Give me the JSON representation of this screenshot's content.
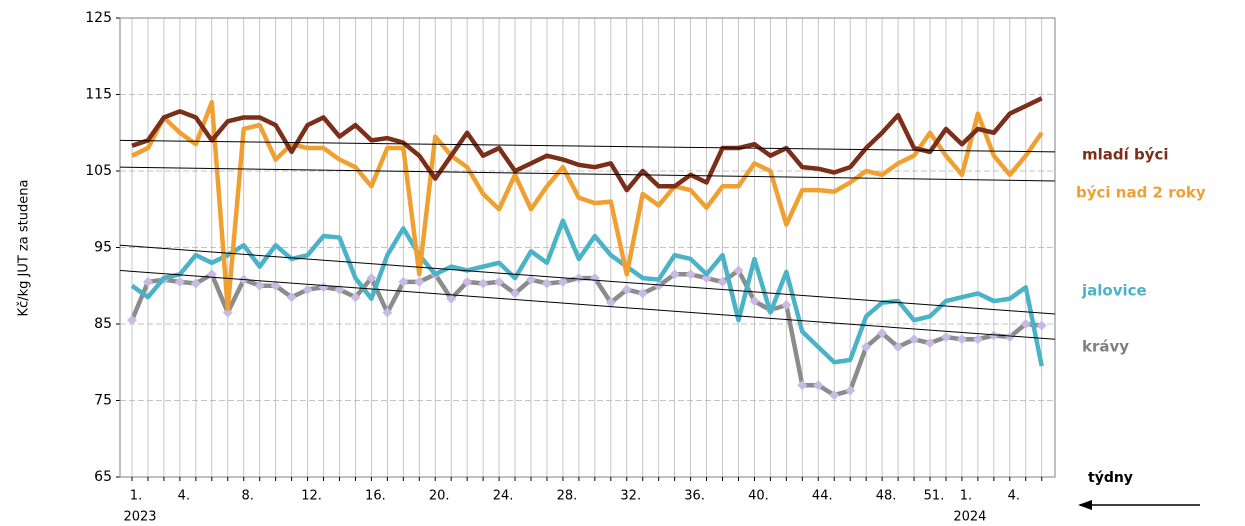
{
  "chart_data": {
    "type": "line",
    "y_label": "Kč/kg JUT za studena",
    "x_label": "týdny",
    "categories": [
      "1.",
      null,
      null,
      "4.",
      null,
      null,
      null,
      "8.",
      null,
      null,
      null,
      "12.",
      null,
      null,
      null,
      "16.",
      null,
      null,
      null,
      "20.",
      null,
      null,
      null,
      "24.",
      null,
      null,
      null,
      "28.",
      null,
      null,
      null,
      "32.",
      null,
      null,
      null,
      "36.",
      null,
      null,
      null,
      "40.",
      null,
      null,
      null,
      "44.",
      null,
      null,
      null,
      "48.",
      null,
      null,
      "51.",
      null,
      "1.",
      null,
      null,
      "4.",
      null,
      null
    ],
    "year_labels": [
      "2023",
      "2024"
    ],
    "ylim": [
      65,
      125
    ],
    "yticks": [
      65,
      75,
      85,
      95,
      105,
      115,
      125
    ],
    "grid": true,
    "series": [
      {
        "name": "mladí býci",
        "color": "#7b2e1a",
        "values": [
          108.3,
          109,
          112,
          112.8,
          112,
          109,
          111.5,
          112,
          112,
          111,
          107.5,
          111,
          112,
          109.5,
          111,
          109,
          109.3,
          108.7,
          107,
          104,
          107,
          110,
          107,
          108,
          105,
          106,
          107,
          106.5,
          105.8,
          105.5,
          106,
          102.5,
          105,
          103,
          103,
          104.5,
          103.5,
          108,
          108,
          108.5,
          107,
          108,
          105.5,
          105.3,
          104.8,
          105.5,
          108,
          110,
          112.3,
          108,
          107.5,
          110.5,
          108.5,
          110.5,
          110,
          112.5,
          113.5,
          114.5
        ]
      },
      {
        "name": "býci nad 2 roky",
        "color": "#f0a030",
        "values": [
          107,
          108,
          112,
          110,
          108.5,
          114,
          87,
          110.5,
          111,
          106.5,
          108.5,
          108,
          108,
          106.5,
          105.5,
          103,
          108,
          108,
          91.5,
          109.5,
          107,
          105.5,
          102,
          100,
          104.5,
          100,
          103,
          105.5,
          101.5,
          100.8,
          101,
          91.5,
          102,
          100.5,
          103,
          102.5,
          100.2,
          103,
          103,
          106,
          105,
          98,
          102.5,
          102.5,
          102.3,
          103.5,
          105,
          104.5,
          106,
          107,
          110,
          107,
          104.5,
          112.5,
          107,
          104.5,
          107,
          110
        ]
      },
      {
        "name": "jalovice",
        "color": "#4ab3c8",
        "values": [
          90,
          88.5,
          91,
          91.5,
          94,
          93,
          94,
          95.3,
          92.5,
          95.3,
          93.5,
          94,
          96.5,
          96.3,
          91,
          88.3,
          94,
          97.5,
          94,
          91.5,
          92.5,
          92,
          92.5,
          93,
          91,
          94.5,
          93,
          98.5,
          93.5,
          96.5,
          94,
          92.5,
          91,
          90.8,
          94,
          93.5,
          91.5,
          94,
          85.5,
          93.5,
          86.5,
          91.8,
          84,
          82,
          80,
          80.3,
          86,
          87.8,
          88,
          85.5,
          86,
          88,
          88.5,
          89,
          88,
          88.3,
          89.8,
          79.5
        ]
      },
      {
        "name": "krávy",
        "color": "#8c8c8c",
        "marker_color": "#c9b9e3",
        "values": [
          85.5,
          90.5,
          90.8,
          90.5,
          90.3,
          91.5,
          86.5,
          90.8,
          90,
          90,
          88.5,
          89.5,
          89.8,
          89.5,
          88.5,
          91,
          86.5,
          90.5,
          90.5,
          91.5,
          88.3,
          90.5,
          90.3,
          90.5,
          89,
          90.8,
          90.3,
          90.5,
          91,
          91,
          87.8,
          89.5,
          89,
          90,
          91.5,
          91.5,
          91,
          90.5,
          92,
          88,
          86.8,
          87.5,
          77,
          77,
          75.7,
          76.3,
          82,
          83.8,
          82,
          83,
          82.5,
          83.3,
          83,
          83,
          83.5,
          83.3,
          85,
          84.8
        ]
      }
    ],
    "trendlines": [
      [
        109,
        107.5
      ],
      [
        105.5,
        103.7
      ],
      [
        95.3,
        86.3
      ],
      [
        92,
        83
      ]
    ]
  }
}
